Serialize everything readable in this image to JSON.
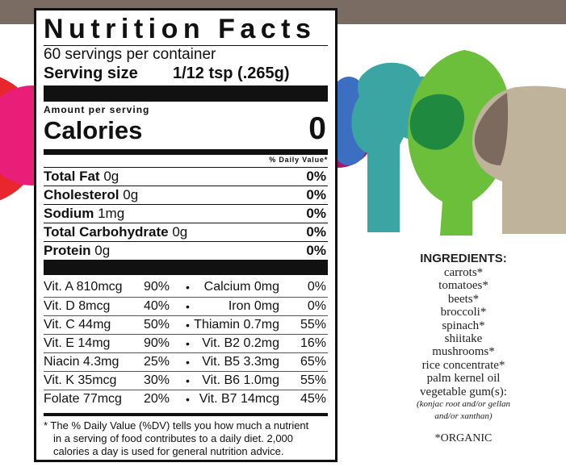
{
  "label": {
    "title": "Nutrition Facts",
    "servings": "60 servings per container",
    "serving_size_label": "Serving size",
    "serving_size_value": "1/12 tsp (.265g)",
    "amount_per_serving": "Amount per serving",
    "calories_label": "Calories",
    "calories_value": "0",
    "dv_header": "% Daily Value*",
    "nutrients": [
      {
        "name": "Total Fat",
        "amount": "0g",
        "dv": "0%"
      },
      {
        "name": "Cholesterol",
        "amount": "0g",
        "dv": "0%"
      },
      {
        "name": "Sodium",
        "amount": "1mg",
        "dv": "0%"
      },
      {
        "name": "Total Carbohydrate",
        "amount": "0g",
        "dv": "0%"
      },
      {
        "name": "Protein",
        "amount": "0g",
        "dv": "0%"
      }
    ],
    "vitamins": [
      {
        "a": "Vit. A 810mcg",
        "a_dv": "90%",
        "b": "Calcium 0mg",
        "b_dv": "0%"
      },
      {
        "a": "Vit. D 8mcg",
        "a_dv": "40%",
        "b": "Iron 0mg",
        "b_dv": "0%"
      },
      {
        "a": "Vit. C 44mg",
        "a_dv": "50%",
        "b": "Thiamin 0.7mg",
        "b_dv": "55%"
      },
      {
        "a": "Vit. E 14mg",
        "a_dv": "90%",
        "b": "Vit. B2 0.2mg",
        "b_dv": "16%"
      },
      {
        "a": "Niacin 4.3mg",
        "a_dv": "25%",
        "b": "Vit. B5 3.3mg",
        "b_dv": "65%"
      },
      {
        "a": "Vit. K 35mcg",
        "a_dv": "30%",
        "b": "Vit. B6 1.0mg",
        "b_dv": "55%"
      },
      {
        "a": "Folate 77mcg",
        "a_dv": "20%",
        "b": "Vit. B7 14mcg",
        "b_dv": "45%"
      }
    ],
    "bullet": "•",
    "footnote": [
      "* The % Daily Value (%DV) tells you how much a nutrient",
      "in a serving of food contributes to a daily diet. 2,000",
      "calories a day is used for general nutrition advice."
    ]
  },
  "ingredients": {
    "heading": "INGREDIENTS:",
    "items": [
      "carrots*",
      "tomatoes*",
      "beets*",
      "broccoli*",
      "spinach*",
      "shiitake",
      "mushrooms*",
      "rice concentrate*",
      "palm kernel oil",
      "vegetable gum(s):"
    ],
    "note": [
      "(konjac root and/or gellan",
      "and/or xanthan)"
    ],
    "organic": "*ORGANIC"
  },
  "colors": {
    "top_bar": "#7a6b63",
    "red": "#e8262b",
    "pink": "#e91e78",
    "magenta": "#a3186a",
    "blue": "#3c6fc2",
    "teal": "#3aa5a3",
    "green_light": "#6cbf3a",
    "green_dark": "#1f8a3f",
    "mushroom_tan": "#bfb39b",
    "mushroom_dark": "#7c6a5e"
  }
}
